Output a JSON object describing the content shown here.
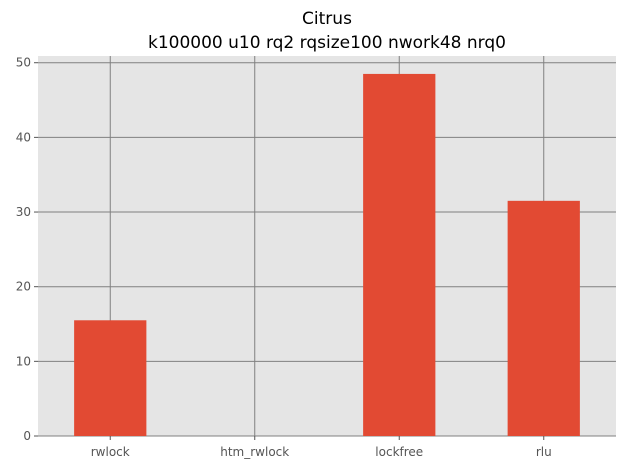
{
  "chart_data": {
    "type": "bar",
    "title": "Citrus",
    "subtitle": "k100000 u10 rq2 rqsize100 nwork48 nrq0",
    "xlabel": "",
    "ylabel": "",
    "categories": [
      "rwlock",
      "htm_rwlock",
      "lockfree",
      "rlu"
    ],
    "values": [
      15.5,
      0,
      48.5,
      31.5
    ],
    "ylim": [
      0,
      50.9
    ],
    "yticks": [
      0,
      10,
      20,
      30,
      40,
      50
    ],
    "grid": true,
    "legend": "none",
    "colors": {
      "bar": "#E24A33",
      "plot_background": "#E5E5E5",
      "grid": "#808080",
      "figure_background": "#FFFFFF"
    }
  }
}
